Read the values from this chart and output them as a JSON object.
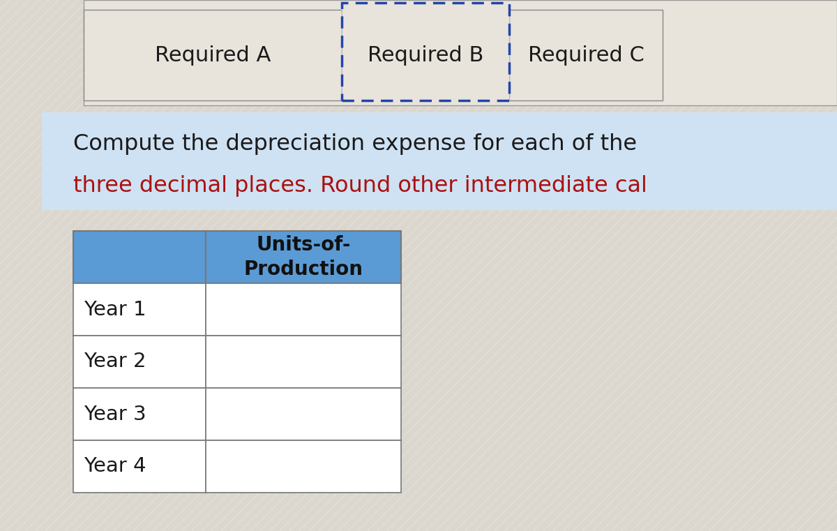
{
  "tab_labels": [
    "Required A",
    "Required B",
    "Required C"
  ],
  "instruction_line1": "Compute the depreciation expense for each of the",
  "instruction_line2": "three decimal places. Round other intermediate cal",
  "instruction_color_line1": "#1a1a1a",
  "instruction_color_line2": "#aa1111",
  "table_header_text": "Units-of-\nProduction",
  "table_rows": [
    "Year 1",
    "Year 2",
    "Year 3",
    "Year 4"
  ],
  "bg_color": "#cfe2f3",
  "tab_area_bg": "#e8e4dc",
  "tab_selected_border": "#2244aa",
  "tab_header_bg": "#5b9bd5",
  "table_border": "#777777",
  "overall_bg": "#dbd7cf",
  "tab_bg_unselected": "#dedad2",
  "tab_border_color": "#888888"
}
